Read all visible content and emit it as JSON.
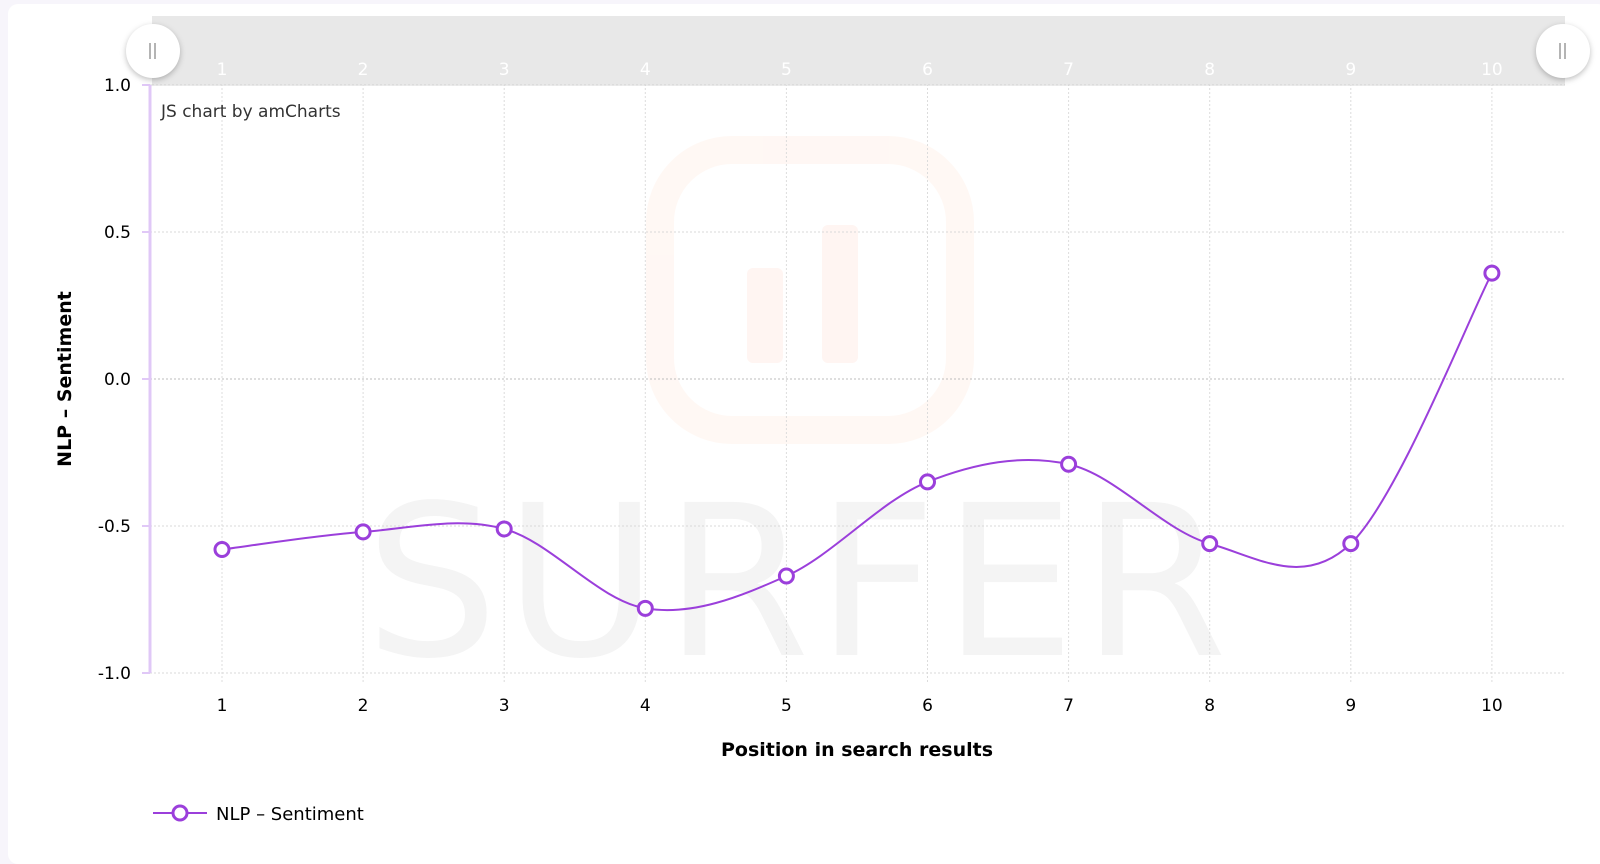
{
  "chart_data": {
    "type": "line",
    "title": "",
    "xlabel": "Position in search results",
    "ylabel": "NLP – Sentiment",
    "categories": [
      "1",
      "2",
      "3",
      "4",
      "5",
      "6",
      "7",
      "8",
      "9",
      "10"
    ],
    "x": [
      1,
      2,
      3,
      4,
      5,
      6,
      7,
      8,
      9,
      10
    ],
    "series": [
      {
        "name": "NLP – Sentiment",
        "color": "#9b3fdb",
        "values": [
          -0.58,
          -0.52,
          -0.51,
          -0.78,
          -0.67,
          -0.35,
          -0.29,
          -0.56,
          -0.56,
          0.36
        ]
      }
    ],
    "ylim": [
      -1.0,
      1.0
    ],
    "yticks": [
      "1.0",
      "0.5",
      "0.0",
      "-0.5",
      "-1.0"
    ],
    "ytick_values": [
      1.0,
      0.5,
      0.0,
      -0.5,
      -1.0
    ],
    "grid": true,
    "smoothed": true,
    "legend_position": "bottom-left"
  },
  "chart": {
    "credit": "JS chart by amCharts",
    "watermark_text": "SURFER",
    "scrollbar": {
      "labels": [
        "1",
        "2",
        "3",
        "4",
        "5",
        "6",
        "7",
        "8",
        "9",
        "10"
      ],
      "left_grip_icon": "grip-icon",
      "right_grip_icon": "grip-icon"
    },
    "legend": {
      "items": [
        {
          "label": "NLP – Sentiment",
          "color": "#9b3fdb"
        }
      ]
    },
    "colors": {
      "series": "#9b3fdb",
      "value_axis": "#e0c8f7",
      "grid": "#d6d6d6",
      "scrollbar_bg": "#e8e8e8"
    }
  }
}
